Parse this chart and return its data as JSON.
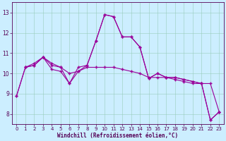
{
  "xlabel": "Windchill (Refroidissement éolien,°C)",
  "ylabel": "",
  "background_color": "#cceeff",
  "plot_bg_color": "#cceeff",
  "line_color": "#990099",
  "marker": "+",
  "xlim": [
    -0.5,
    23.5
  ],
  "ylim": [
    7.5,
    13.5
  ],
  "yticks": [
    8,
    9,
    10,
    11,
    12,
    13
  ],
  "xticks": [
    0,
    1,
    2,
    3,
    4,
    5,
    6,
    7,
    8,
    9,
    10,
    11,
    12,
    13,
    14,
    15,
    16,
    17,
    18,
    19,
    20,
    21,
    22,
    23
  ],
  "line1": {
    "x": [
      0,
      1,
      2,
      3,
      4,
      5,
      6,
      7,
      8,
      9,
      10,
      11,
      12,
      13,
      14,
      15,
      16,
      17,
      18,
      19,
      20,
      21,
      22,
      23
    ],
    "y": [
      8.9,
      10.3,
      10.4,
      10.8,
      10.4,
      10.3,
      10.0,
      10.1,
      10.3,
      10.3,
      10.3,
      10.3,
      10.2,
      10.1,
      10.0,
      9.8,
      9.8,
      9.8,
      9.7,
      9.6,
      9.5,
      9.5,
      9.5,
      8.1
    ]
  },
  "line2": {
    "x": [
      0,
      1,
      2,
      3,
      4,
      5,
      6,
      7,
      8,
      9,
      10,
      11,
      12,
      13,
      14,
      15,
      16,
      17,
      18,
      19,
      20,
      21,
      22,
      23
    ],
    "y": [
      8.9,
      10.3,
      10.5,
      10.8,
      10.2,
      10.1,
      9.5,
      10.1,
      10.4,
      11.6,
      12.9,
      12.8,
      11.8,
      11.8,
      11.3,
      9.75,
      10.0,
      9.8,
      9.8,
      9.7,
      9.6,
      9.5,
      7.7,
      8.1
    ]
  },
  "line3": {
    "x": [
      1,
      2,
      3,
      4,
      5,
      6,
      7,
      8,
      9,
      10,
      11,
      12,
      13,
      14,
      15,
      16,
      17,
      18,
      19,
      20,
      21,
      22,
      23
    ],
    "y": [
      10.3,
      10.4,
      10.8,
      10.5,
      10.3,
      9.5,
      10.3,
      10.4,
      11.6,
      12.9,
      12.8,
      11.8,
      11.8,
      11.3,
      9.75,
      10.0,
      9.8,
      9.8,
      9.7,
      9.6,
      9.5,
      7.7,
      8.1
    ]
  }
}
